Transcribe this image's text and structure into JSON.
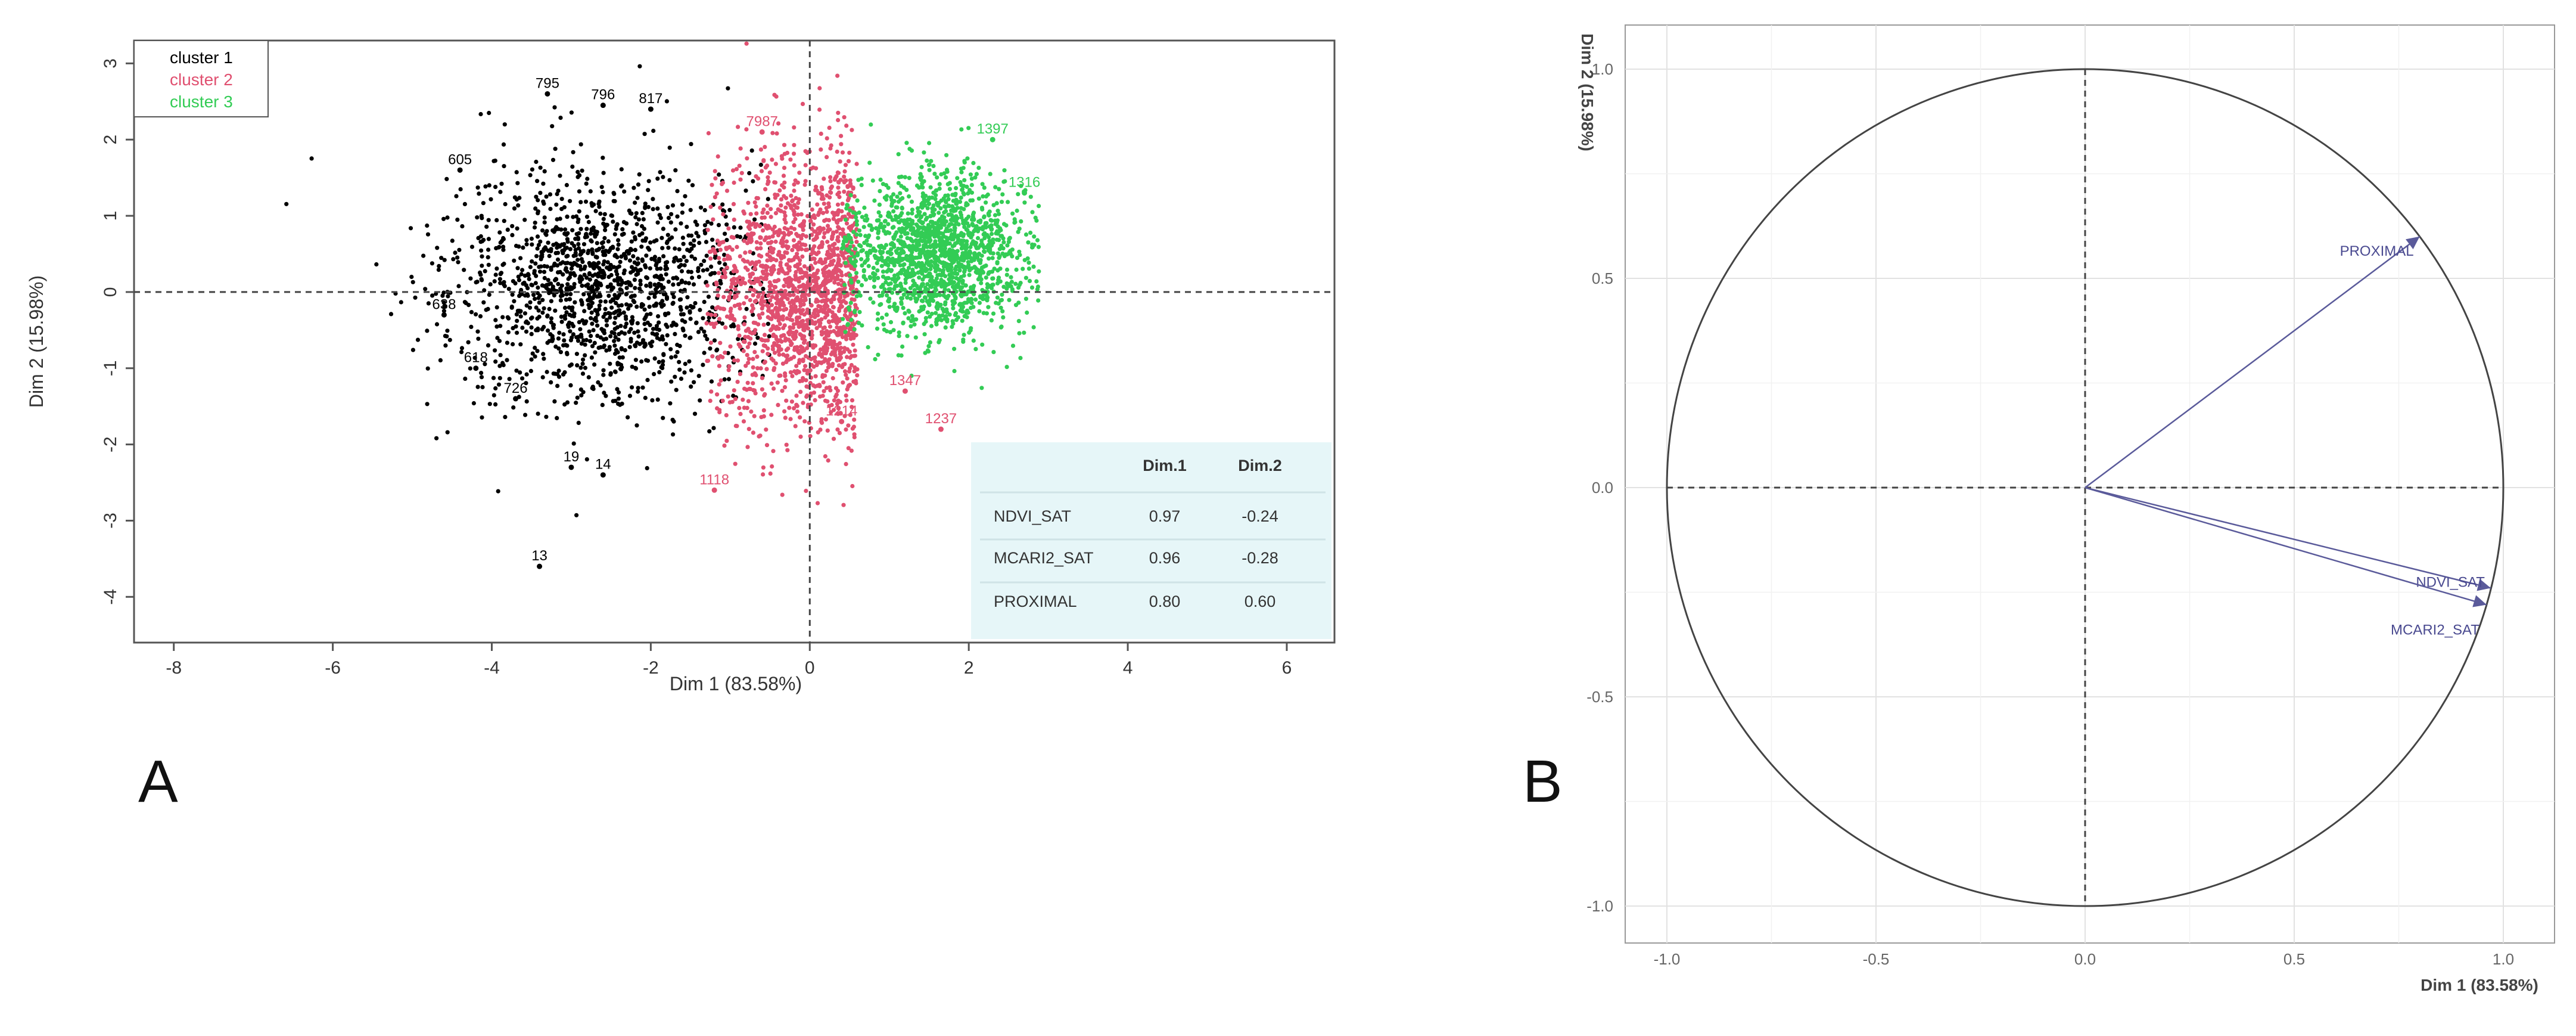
{
  "chart_data": [
    {
      "panel": "A",
      "type": "scatter",
      "xlabel": "Dim 1 (83.58%)",
      "ylabel": "Dim 2 (15.98%)",
      "xlim": [
        -8.5,
        6.6
      ],
      "ylim": [
        -4.6,
        3.3
      ],
      "x_ticks": [
        -8,
        -6,
        -4,
        -2,
        0,
        2,
        4,
        6
      ],
      "y_ticks": [
        3,
        2,
        1,
        0,
        -1,
        -2,
        -3,
        -4
      ],
      "reference_lines": "dashed lines at x=0 and y=0",
      "legend": {
        "position": "top-left",
        "entries": [
          {
            "name": "cluster 1",
            "color": "#000000"
          },
          {
            "name": "cluster 2",
            "color": "#e05070"
          },
          {
            "name": "cluster 3",
            "color": "#33cc55"
          }
        ]
      },
      "series": [
        {
          "name": "cluster 1",
          "color": "#000000",
          "center": [
            -2.6,
            0.1
          ],
          "spread": [
            0.95,
            0.75
          ],
          "count": 1500,
          "labeled_points": [
            {
              "label": "795",
              "x": -3.3,
              "y": 2.6
            },
            {
              "label": "796",
              "x": -2.6,
              "y": 2.45
            },
            {
              "label": "817",
              "x": -2.0,
              "y": 2.4
            },
            {
              "label": "605",
              "x": -4.4,
              "y": 1.6
            },
            {
              "label": "638",
              "x": -4.6,
              "y": -0.3
            },
            {
              "label": "618",
              "x": -4.2,
              "y": -1.0
            },
            {
              "label": "726",
              "x": -3.7,
              "y": -1.4
            },
            {
              "label": "19",
              "x": -3.0,
              "y": -2.3
            },
            {
              "label": "14",
              "x": -2.6,
              "y": -2.4
            },
            {
              "label": "13",
              "x": -3.4,
              "y": -3.6
            }
          ]
        },
        {
          "name": "cluster 2",
          "color": "#e05070",
          "center": [
            -0.1,
            0.0
          ],
          "spread": [
            0.6,
            0.9
          ],
          "count": 1700,
          "labeled_points": [
            {
              "label": "7987",
              "x": -0.6,
              "y": 2.1
            },
            {
              "label": "1347",
              "x": 1.2,
              "y": -1.3
            },
            {
              "label": "1237",
              "x": 1.65,
              "y": -1.8
            },
            {
              "label": "1214",
              "x": 0.4,
              "y": -1.7
            },
            {
              "label": "1118",
              "x": -1.2,
              "y": -2.6
            }
          ]
        },
        {
          "name": "cluster 3",
          "color": "#33cc55",
          "center": [
            1.6,
            0.5
          ],
          "spread": [
            0.55,
            0.5
          ],
          "count": 1600,
          "labeled_points": [
            {
              "label": "1397",
              "x": 2.3,
              "y": 2.0
            },
            {
              "label": "1316",
              "x": 2.7,
              "y": 1.3
            }
          ]
        }
      ],
      "table": {
        "headers": [
          "",
          "Dim.1",
          "Dim.2"
        ],
        "rows": [
          [
            "NDVI_SAT",
            "0.97",
            "-0.24"
          ],
          [
            "MCARI2_SAT",
            "0.96",
            "-0.28"
          ],
          [
            "PROXIMAL",
            "0.80",
            "0.60"
          ]
        ]
      }
    },
    {
      "panel": "B",
      "type": "scatter",
      "subtype": "correlation circle",
      "xlabel": "Dim 1 (83.58%)",
      "ylabel": "Dim 2 (15.98%)",
      "xlim": [
        -1.0,
        1.0
      ],
      "ylim": [
        -1.0,
        1.0
      ],
      "x_ticks": [
        "-1.0",
        "-0.5",
        "0.0",
        "0.5",
        "1.0"
      ],
      "y_ticks": [
        "1.0",
        "0.5",
        "0.0",
        "-0.5",
        "-1.0"
      ],
      "grid": true,
      "vectors": [
        {
          "name": "PROXIMAL",
          "x": 0.8,
          "y": 0.6
        },
        {
          "name": "NDVI_SAT",
          "x": 0.97,
          "y": -0.24
        },
        {
          "name": "MCARI2_SAT",
          "x": 0.96,
          "y": -0.28
        }
      ]
    }
  ],
  "panel_labels": {
    "a": "A",
    "b": "B"
  },
  "colors": {
    "cluster1": "#000000",
    "cluster2": "#e05070",
    "cluster3": "#33cc55",
    "vector": "#5a5a9a",
    "table_bg": "#e6f6f8"
  }
}
